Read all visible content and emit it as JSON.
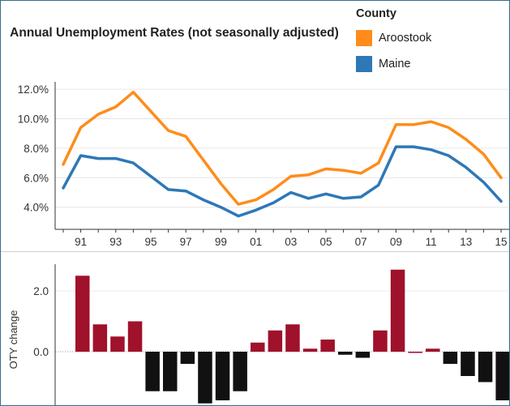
{
  "chart_data": [
    {
      "type": "line",
      "title": "Annual Unemployment Rates (not seasonally adjusted)",
      "legend_title": "County",
      "legend_position": "top-right",
      "x": [
        1990,
        1991,
        1992,
        1993,
        1994,
        1995,
        1996,
        1997,
        1998,
        1999,
        2000,
        2001,
        2002,
        2003,
        2004,
        2005,
        2006,
        2007,
        2008,
        2009,
        2010,
        2011,
        2012,
        2013,
        2014,
        2015
      ],
      "x_tick_labels": [
        "91",
        "93",
        "95",
        "97",
        "99",
        "01",
        "03",
        "05",
        "07",
        "09",
        "11",
        "13",
        "15"
      ],
      "y_tick_labels": [
        "4.0%",
        "6.0%",
        "8.0%",
        "10.0%",
        "12.0%"
      ],
      "ylim": [
        2.5,
        12.5
      ],
      "grid": true,
      "series": [
        {
          "name": "Aroostook",
          "color": "#ff8c1a",
          "values": [
            6.9,
            9.4,
            10.3,
            10.8,
            11.8,
            10.5,
            9.2,
            8.8,
            7.2,
            5.6,
            4.2,
            4.5,
            5.2,
            6.1,
            6.2,
            6.6,
            6.5,
            6.3,
            7.0,
            9.6,
            9.6,
            9.8,
            9.4,
            8.6,
            7.6,
            6.0
          ]
        },
        {
          "name": "Maine",
          "color": "#2e78b7",
          "values": [
            5.3,
            7.5,
            7.3,
            7.3,
            7.0,
            6.1,
            5.2,
            5.1,
            4.5,
            4.0,
            3.4,
            3.8,
            4.3,
            5.0,
            4.6,
            4.9,
            4.6,
            4.7,
            5.5,
            8.1,
            8.1,
            7.9,
            7.5,
            6.7,
            5.7,
            4.4
          ]
        }
      ]
    },
    {
      "type": "bar",
      "ylabel": "OTY change",
      "y_tick_labels": [
        "0.0",
        "2.0"
      ],
      "ylim": [
        -2.5,
        3.0
      ],
      "positive_color": "#a0112b",
      "negative_color": "#111111",
      "values": [
        2.5,
        0.9,
        0.5,
        1.0,
        -1.3,
        -1.3,
        -0.4,
        -1.7,
        -1.6,
        -1.3,
        0.3,
        0.7,
        0.9,
        0.1,
        0.4,
        -0.1,
        -0.2,
        0.7,
        2.7,
        0.0,
        0.1,
        -0.4,
        -0.8,
        -1.0,
        -1.6
      ]
    }
  ]
}
